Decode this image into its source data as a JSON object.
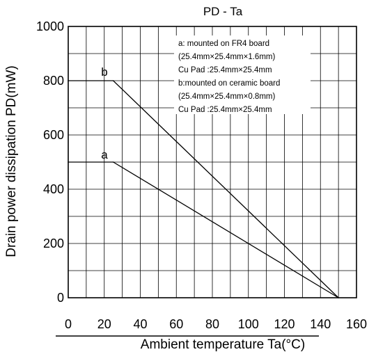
{
  "chart_data": {
    "type": "line",
    "title": "PD - Ta",
    "xlabel": "Ambient temperature Ta(°C)",
    "ylabel": "Drain power dissipation PD(mW)",
    "xlim": [
      0,
      160
    ],
    "ylim": [
      0,
      1000
    ],
    "x_ticks": [
      0,
      20,
      40,
      60,
      80,
      100,
      120,
      140,
      160
    ],
    "y_ticks": [
      0,
      200,
      400,
      600,
      800,
      1000
    ],
    "grid": true,
    "series": [
      {
        "name": "a",
        "x": [
          0,
          25,
          150
        ],
        "y": [
          500,
          500,
          0
        ]
      },
      {
        "name": "b",
        "x": [
          0,
          25,
          150
        ],
        "y": [
          800,
          800,
          0
        ]
      }
    ],
    "legend_note": [
      "a: mounted on FR4 board",
      "(25.4mm×25.4mm×1.6mm)",
      "Cu Pad :25.4mm×25.4mm",
      "b:mounted on ceramic board",
      "(25.4mm×25.4mm×0.8mm)",
      "Cu Pad :25.4mm×25.4mm"
    ]
  }
}
